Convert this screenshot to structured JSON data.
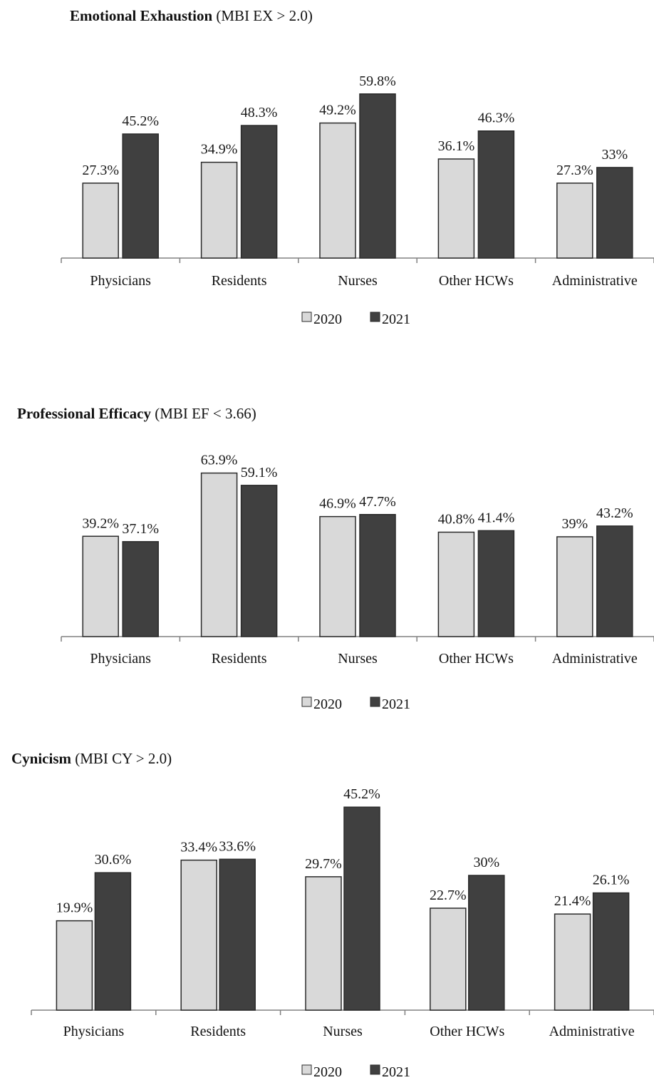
{
  "colors": {
    "series_2020": "#d9d9d9",
    "series_2021": "#404040",
    "axis": "#808080"
  },
  "chart_data": [
    {
      "type": "bar",
      "title": "Emotional Exhaustion",
      "subtitle": "(MBI EX > 2.0)",
      "categories": [
        "Physicians",
        "Residents",
        "Nurses",
        "Other HCWs",
        "Administrative"
      ],
      "series": [
        {
          "name": "2020",
          "values": [
            27.3,
            34.9,
            49.2,
            36.1,
            27.3
          ],
          "labels": [
            "27.3%",
            "34.9%",
            "49.2%",
            "36.1%",
            "27.3%"
          ]
        },
        {
          "name": "2021",
          "values": [
            45.2,
            48.3,
            59.8,
            46.3,
            33
          ],
          "labels": [
            "45.2%",
            "48.3%",
            "59.8%",
            "46.3%",
            "33%"
          ]
        }
      ],
      "legend_position": "bottom",
      "grid": false
    },
    {
      "type": "bar",
      "title": "Professional Efficacy",
      "subtitle": "(MBI EF < 3.66)",
      "categories": [
        "Physicians",
        "Residents",
        "Nurses",
        "Other HCWs",
        "Administrative"
      ],
      "series": [
        {
          "name": "2020",
          "values": [
            39.2,
            63.9,
            46.9,
            40.8,
            39
          ],
          "labels": [
            "39.2%",
            "63.9%",
            "46.9%",
            "40.8%",
            "39%"
          ]
        },
        {
          "name": "2021",
          "values": [
            37.1,
            59.1,
            47.7,
            41.4,
            43.2
          ],
          "labels": [
            "37.1%",
            "59.1%",
            "47.7%",
            "41.4%",
            "43.2%"
          ]
        }
      ],
      "legend_position": "bottom",
      "grid": false
    },
    {
      "type": "bar",
      "title": "Cynicism",
      "subtitle": "(MBI CY > 2.0)",
      "categories": [
        "Physicians",
        "Residents",
        "Nurses",
        "Other HCWs",
        "Administrative"
      ],
      "series": [
        {
          "name": "2020",
          "values": [
            19.9,
            33.4,
            29.7,
            22.7,
            21.4
          ],
          "labels": [
            "19.9%",
            "33.4%",
            "29.7%",
            "22.7%",
            "21.4%"
          ]
        },
        {
          "name": "2021",
          "values": [
            30.6,
            33.6,
            45.2,
            30,
            26.1
          ],
          "labels": [
            "30.6%",
            "33.6%",
            "45.2%",
            "30%",
            "26.1%"
          ]
        }
      ],
      "legend_position": "bottom",
      "grid": false
    }
  ]
}
